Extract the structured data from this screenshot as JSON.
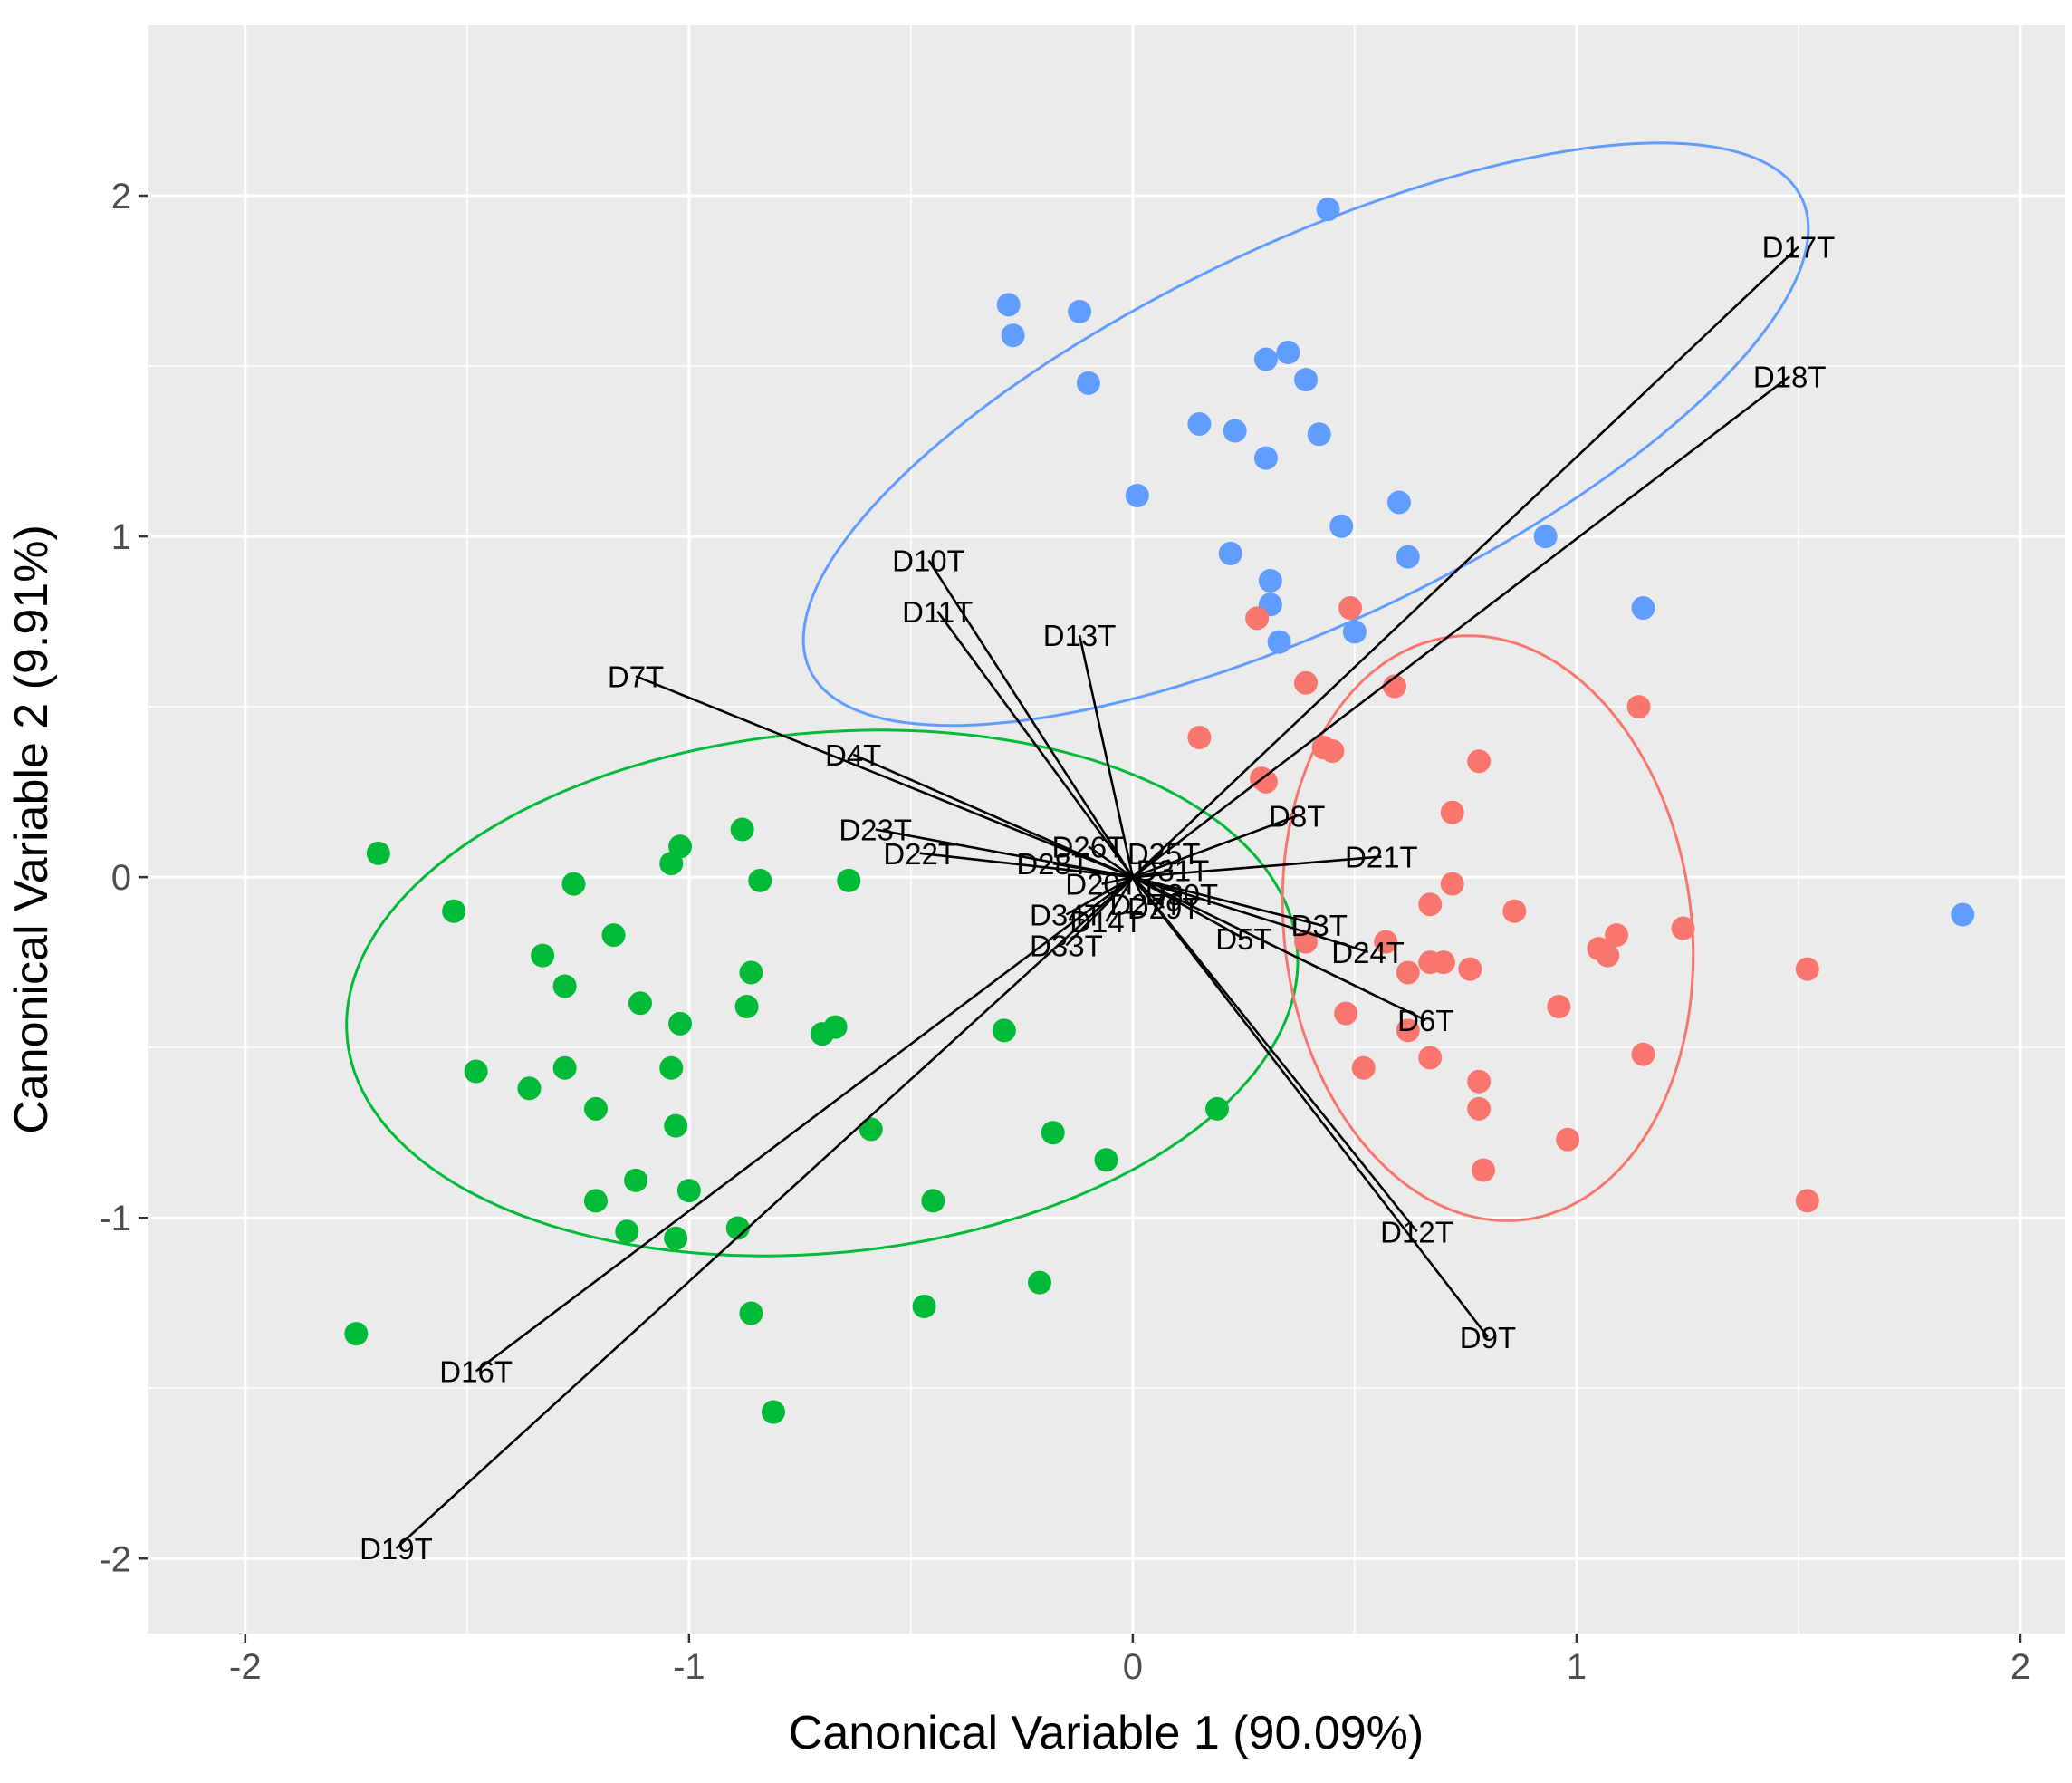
{
  "chart_data": {
    "type": "scatter",
    "title": "",
    "xlabel": "Canonical Variable 1 (90.09%)",
    "ylabel": "Canonical Variable 2  (9.91%)",
    "xlim": [
      -2.22,
      2.1
    ],
    "ylim": [
      -2.22,
      2.5
    ],
    "xticks": [
      -2,
      -1,
      0,
      1,
      2
    ],
    "yticks": [
      -2,
      -1,
      0,
      1,
      2
    ],
    "xtick_labels": [
      "-2",
      "-1",
      "0",
      "1",
      "2"
    ],
    "ytick_labels": [
      "-2",
      "-1",
      "0",
      "1",
      "2"
    ],
    "grid": true,
    "colors": {
      "background": "#ebebeb",
      "grid": "#ffffff",
      "green": "#00ba38",
      "blue": "#619cff",
      "red": "#f8766d",
      "vector": "#000000"
    },
    "series": [
      {
        "name": "green",
        "color": "#00ba38",
        "ellipse": {
          "cx": -0.7,
          "cy": -0.34,
          "rx": 1.08,
          "ry": 0.76,
          "angle_deg": 10
        },
        "points": [
          [
            -1.7,
            0.07
          ],
          [
            -1.53,
            -0.1
          ],
          [
            -1.26,
            -0.02
          ],
          [
            -1.33,
            -0.23
          ],
          [
            -1.28,
            -0.32
          ],
          [
            -1.17,
            -0.17
          ],
          [
            -1.04,
            0.04
          ],
          [
            -1.02,
            0.09
          ],
          [
            -0.88,
            0.14
          ],
          [
            -0.84,
            -0.01
          ],
          [
            -0.64,
            -0.01
          ],
          [
            -1.11,
            -0.37
          ],
          [
            -1.02,
            -0.43
          ],
          [
            -0.86,
            -0.28
          ],
          [
            -0.87,
            -0.38
          ],
          [
            -0.7,
            -0.46
          ],
          [
            -0.67,
            -0.44
          ],
          [
            -1.48,
            -0.57
          ],
          [
            -1.36,
            -0.62
          ],
          [
            -1.28,
            -0.56
          ],
          [
            -1.21,
            -0.68
          ],
          [
            -1.04,
            -0.56
          ],
          [
            -1.03,
            -0.73
          ],
          [
            -0.59,
            -0.74
          ],
          [
            -0.29,
            -0.45
          ],
          [
            -0.18,
            -0.75
          ],
          [
            -0.06,
            -0.83
          ],
          [
            0.19,
            -0.68
          ],
          [
            -1.21,
            -0.95
          ],
          [
            -1.12,
            -0.89
          ],
          [
            -1.0,
            -0.92
          ],
          [
            -0.45,
            -0.95
          ],
          [
            -1.14,
            -1.04
          ],
          [
            -1.03,
            -1.06
          ],
          [
            -0.89,
            -1.03
          ],
          [
            -0.86,
            -1.28
          ],
          [
            -0.47,
            -1.26
          ],
          [
            -0.21,
            -1.19
          ],
          [
            -0.81,
            -1.57
          ],
          [
            -1.75,
            -1.34
          ]
        ]
      },
      {
        "name": "blue",
        "color": "#619cff",
        "ellipse": {
          "cx": 0.39,
          "cy": 1.3,
          "rx": 1.32,
          "ry": 0.52,
          "angle_deg": 34
        },
        "points": [
          [
            0.44,
            1.96
          ],
          [
            -0.28,
            1.68
          ],
          [
            -0.27,
            1.59
          ],
          [
            -0.12,
            1.66
          ],
          [
            -0.1,
            1.45
          ],
          [
            0.3,
            1.52
          ],
          [
            0.35,
            1.54
          ],
          [
            0.39,
            1.46
          ],
          [
            0.15,
            1.33
          ],
          [
            0.23,
            1.31
          ],
          [
            0.3,
            1.23
          ],
          [
            0.42,
            1.3
          ],
          [
            0.01,
            1.12
          ],
          [
            0.6,
            1.1
          ],
          [
            0.47,
            1.03
          ],
          [
            0.62,
            0.94
          ],
          [
            0.93,
            1.0
          ],
          [
            0.22,
            0.95
          ],
          [
            0.31,
            0.87
          ],
          [
            0.31,
            0.8
          ],
          [
            0.33,
            0.69
          ],
          [
            0.5,
            0.72
          ],
          [
            1.15,
            0.79
          ],
          [
            1.87,
            -0.11
          ]
        ]
      },
      {
        "name": "red",
        "color": "#f8766d",
        "ellipse": {
          "cx": 0.8,
          "cy": -0.15,
          "rx": 0.86,
          "ry": 0.46,
          "angle_deg": -86
        },
        "points": [
          [
            0.28,
            0.76
          ],
          [
            0.49,
            0.79
          ],
          [
            0.39,
            0.57
          ],
          [
            0.59,
            0.56
          ],
          [
            1.14,
            0.5
          ],
          [
            0.15,
            0.41
          ],
          [
            0.43,
            0.38
          ],
          [
            0.45,
            0.37
          ],
          [
            0.78,
            0.34
          ],
          [
            0.29,
            0.29
          ],
          [
            0.72,
            0.19
          ],
          [
            0.72,
            -0.02
          ],
          [
            0.67,
            -0.08
          ],
          [
            0.86,
            -0.1
          ],
          [
            0.39,
            -0.19
          ],
          [
            0.57,
            -0.19
          ],
          [
            0.62,
            -0.28
          ],
          [
            0.67,
            -0.25
          ],
          [
            0.7,
            -0.25
          ],
          [
            0.76,
            -0.27
          ],
          [
            1.05,
            -0.21
          ],
          [
            1.07,
            -0.23
          ],
          [
            1.09,
            -0.17
          ],
          [
            1.24,
            -0.15
          ],
          [
            1.52,
            -0.27
          ],
          [
            0.48,
            -0.4
          ],
          [
            0.62,
            -0.45
          ],
          [
            0.67,
            -0.53
          ],
          [
            0.52,
            -0.56
          ],
          [
            0.78,
            -0.6
          ],
          [
            0.78,
            -0.68
          ],
          [
            0.96,
            -0.38
          ],
          [
            1.15,
            -0.52
          ],
          [
            0.98,
            -0.77
          ],
          [
            0.79,
            -0.86
          ],
          [
            1.52,
            -0.95
          ],
          [
            0.3,
            0.28
          ]
        ]
      }
    ],
    "vectors": [
      {
        "label": "D17T",
        "x": 1.5,
        "y": 1.85
      },
      {
        "label": "D18T",
        "x": 1.48,
        "y": 1.47
      },
      {
        "label": "D10T",
        "x": -0.46,
        "y": 0.93
      },
      {
        "label": "D11T",
        "x": -0.44,
        "y": 0.78
      },
      {
        "label": "D13T",
        "x": -0.12,
        "y": 0.71
      },
      {
        "label": "D7T",
        "x": -1.12,
        "y": 0.59
      },
      {
        "label": "D4T",
        "x": -0.63,
        "y": 0.36
      },
      {
        "label": "D23T",
        "x": -0.58,
        "y": 0.14
      },
      {
        "label": "D22T",
        "x": -0.48,
        "y": 0.07
      },
      {
        "label": "D8T",
        "x": 0.37,
        "y": 0.18
      },
      {
        "label": "D21T",
        "x": 0.56,
        "y": 0.06
      },
      {
        "label": "D3T",
        "x": 0.42,
        "y": -0.14
      },
      {
        "label": "D24T",
        "x": 0.53,
        "y": -0.22
      },
      {
        "label": "D5T",
        "x": 0.25,
        "y": -0.18
      },
      {
        "label": "D6T",
        "x": 0.66,
        "y": -0.42
      },
      {
        "label": "D12T",
        "x": 0.64,
        "y": -1.04
      },
      {
        "label": "D9T",
        "x": 0.8,
        "y": -1.35
      },
      {
        "label": "D16T",
        "x": -1.48,
        "y": -1.45
      },
      {
        "label": "D19T",
        "x": -1.66,
        "y": -1.97
      },
      {
        "label": "D34T",
        "x": -0.15,
        "y": -0.11
      },
      {
        "label": "D33T",
        "x": -0.15,
        "y": -0.2
      },
      {
        "label": "D14T",
        "x": -0.06,
        "y": -0.13
      },
      {
        "label": "D20T",
        "x": -0.07,
        "y": -0.02
      },
      {
        "label": "D26T",
        "x": -0.1,
        "y": 0.09
      },
      {
        "label": "D25T",
        "x": 0.07,
        "y": 0.07
      },
      {
        "label": "D28T",
        "x": -0.18,
        "y": 0.04
      },
      {
        "label": "D31T",
        "x": 0.09,
        "y": 0.02
      },
      {
        "label": "D30T",
        "x": 0.11,
        "y": -0.05
      },
      {
        "label": "D29T",
        "x": 0.07,
        "y": -0.09
      },
      {
        "label": "D27T",
        "x": 0.03,
        "y": -0.08
      }
    ]
  }
}
